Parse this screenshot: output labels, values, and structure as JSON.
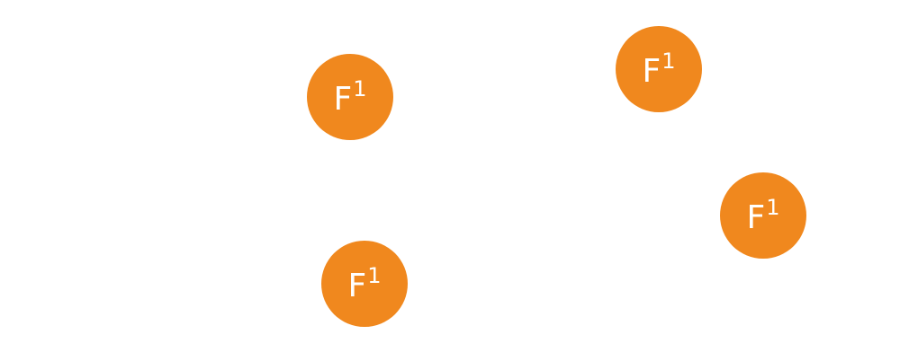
{
  "accent_color": "#f0881e",
  "badges": [
    {
      "icon": "formula-one-icon",
      "main": "F",
      "sup": "1"
    },
    {
      "icon": "formula-one-icon",
      "main": "F",
      "sup": "1"
    },
    {
      "icon": "formula-one-icon",
      "main": "F",
      "sup": "1"
    },
    {
      "icon": "formula-one-icon",
      "main": "F",
      "sup": "1"
    }
  ]
}
